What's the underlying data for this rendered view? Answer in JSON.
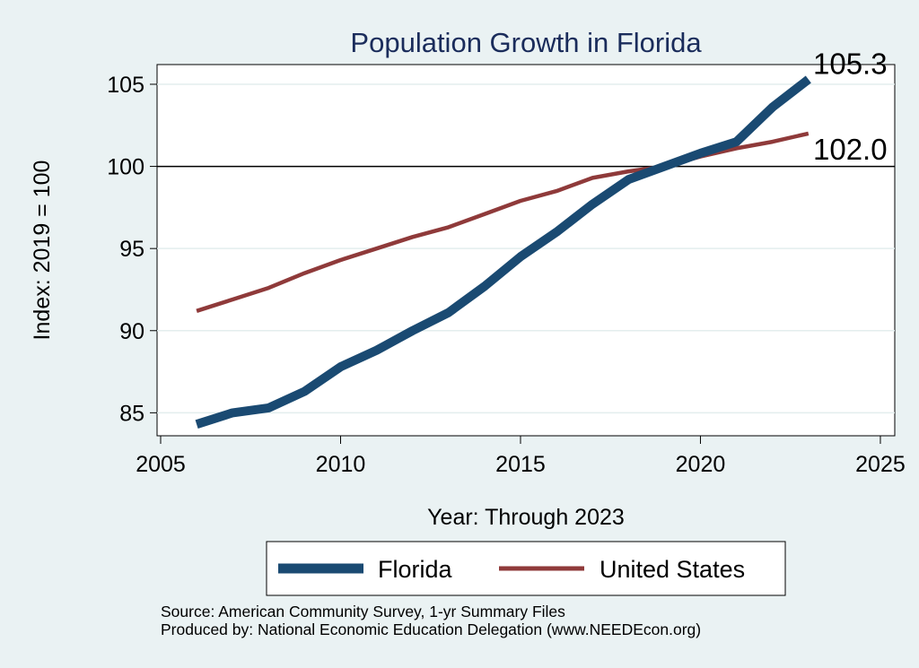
{
  "chart_data": {
    "type": "line",
    "title": "Population Growth in Florida",
    "xlabel": "Year: Through 2023",
    "ylabel": "Index: 2019 = 100",
    "xlim": [
      2004.9,
      2025.4
    ],
    "ylim": [
      83.6,
      106.2
    ],
    "xticks": [
      2005,
      2010,
      2015,
      2020,
      2025
    ],
    "yticks": [
      85,
      90,
      95,
      100,
      105
    ],
    "reference_line": 100,
    "grid": "horizontal",
    "legend_position": "bottom",
    "series": [
      {
        "name": "Florida",
        "color": "#1a4a72",
        "x": [
          2006,
          2007,
          2008,
          2009,
          2010,
          2011,
          2012,
          2013,
          2014,
          2015,
          2016,
          2017,
          2018,
          2019,
          2020,
          2021,
          2022,
          2023
        ],
        "values": [
          84.3,
          85.0,
          85.3,
          86.3,
          87.8,
          88.8,
          90.0,
          91.1,
          92.7,
          94.5,
          96.0,
          97.7,
          99.2,
          100.0,
          100.8,
          101.5,
          103.6,
          105.3
        ],
        "end_label": "105.3"
      },
      {
        "name": "United States",
        "color": "#8f3a3a",
        "x": [
          2006,
          2007,
          2008,
          2009,
          2010,
          2011,
          2012,
          2013,
          2014,
          2015,
          2016,
          2017,
          2018,
          2019,
          2020,
          2021,
          2022,
          2023
        ],
        "values": [
          91.2,
          91.9,
          92.6,
          93.5,
          94.3,
          95.0,
          95.7,
          96.3,
          97.1,
          97.9,
          98.5,
          99.3,
          99.7,
          100.0,
          100.6,
          101.1,
          101.5,
          102.0
        ],
        "end_label": "102.0"
      }
    ],
    "source_lines": [
      "Source: American Community Survey, 1-yr Summary Files",
      "Produced by: National Economic Education Delegation (www.NEEDEcon.org)"
    ]
  }
}
